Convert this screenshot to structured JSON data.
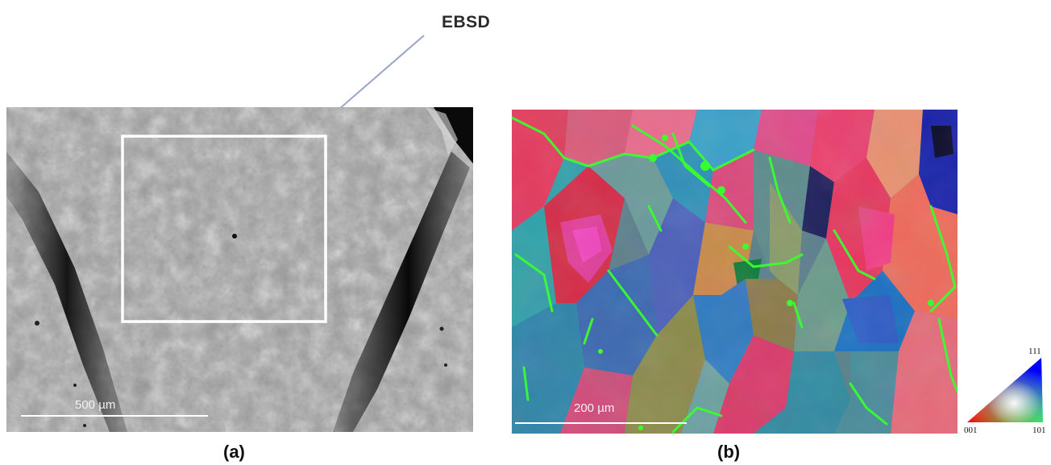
{
  "callout": {
    "label": "EBSD"
  },
  "panel_a": {
    "label": "(a)",
    "scale_bar": "500 µm"
  },
  "panel_b": {
    "label": "(b)",
    "scale_bar": "200 µm",
    "ipf_legend": {
      "top": "111",
      "left": "001",
      "right": "101"
    }
  },
  "colors": {
    "grain_boundary": "#39ff2e",
    "callout_arrow": "#9aa7c4",
    "roi_box": "#ffffff"
  }
}
